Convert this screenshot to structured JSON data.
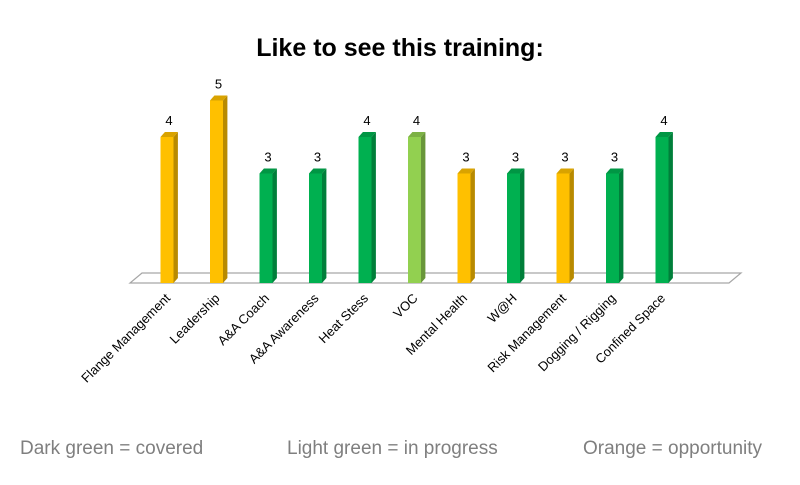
{
  "chart_data": {
    "type": "bar",
    "title": "Like to see this training:",
    "categories": [
      "Flange Management",
      "Leadership",
      "A&A Coach",
      "A&A Awareness",
      "Heat Stess",
      "VOC",
      "Mental Health",
      "W@H",
      "Risk Management",
      "Dogging / Rigging",
      "Confined Space"
    ],
    "values": [
      4,
      5,
      3,
      3,
      4,
      4,
      3,
      3,
      3,
      3,
      4
    ],
    "status": [
      "opportunity",
      "opportunity",
      "covered",
      "covered",
      "covered",
      "in progress",
      "opportunity",
      "covered",
      "opportunity",
      "covered",
      "covered"
    ],
    "colors": {
      "covered": "#00b050",
      "in progress": "#92d050",
      "opportunity": "#ffc000"
    },
    "ylim": [
      0,
      5
    ],
    "grid": false,
    "data_labels": true,
    "legend": "none"
  },
  "notes": {
    "covered": "Dark green = covered",
    "in_progress": "Light green = in progress",
    "opportunity": "Orange = opportunity"
  }
}
